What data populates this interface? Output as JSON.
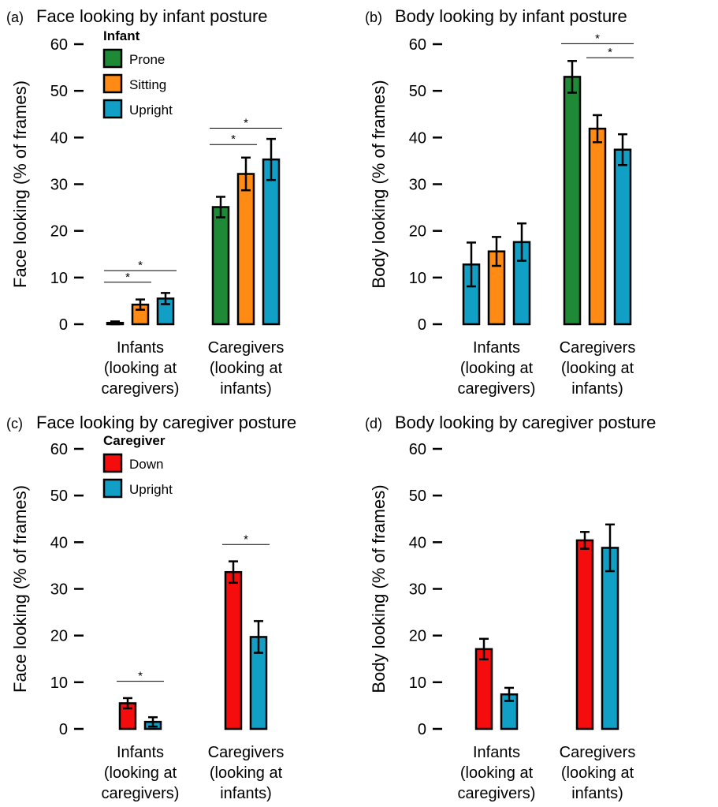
{
  "colors": {
    "Prone": "#1f8a36",
    "Sitting": "#ff8a14",
    "Upright": "#129fc5",
    "Down": "#f50d0d"
  },
  "chart_data": [
    {
      "type": "bar",
      "panel": "(a)",
      "title": "Face looking by infant posture",
      "ylabel": "Face looking (% of frames)",
      "xlabel": "",
      "ylim": [
        0,
        60
      ],
      "yticks": [
        0,
        10,
        20,
        30,
        40,
        50,
        60
      ],
      "categories": [
        [
          "Infants",
          "(looking at",
          "caregivers)"
        ],
        [
          "Caregivers",
          "(looking at",
          "infants)"
        ]
      ],
      "legend": {
        "title": "Infant",
        "position": "top-left",
        "items": [
          "Prone",
          "Sitting",
          "Upright"
        ]
      },
      "series": [
        {
          "name": "Prone",
          "values": [
            0.3,
            25.1
          ],
          "err": [
            0.3,
            2.2
          ]
        },
        {
          "name": "Sitting",
          "values": [
            4.2,
            32.2
          ],
          "err": [
            1.1,
            3.5
          ]
        },
        {
          "name": "Upright",
          "values": [
            5.5,
            35.3
          ],
          "err": [
            1.2,
            4.4
          ]
        }
      ],
      "significance": [
        {
          "category": 0,
          "from": 0,
          "to": 1,
          "y": 9.0,
          "label": "*"
        },
        {
          "category": 0,
          "from": 0,
          "to": 2,
          "y": 11.5,
          "label": "*"
        },
        {
          "category": 1,
          "from": 0,
          "to": 1,
          "y": 38.5,
          "label": "*"
        },
        {
          "category": 1,
          "from": 0,
          "to": 2,
          "y": 42.0,
          "label": "*"
        }
      ]
    },
    {
      "type": "bar",
      "panel": "(b)",
      "title": "Body looking by infant posture",
      "ylabel": "Body looking (% of frames)",
      "xlabel": "",
      "ylim": [
        0,
        60
      ],
      "yticks": [
        0,
        10,
        20,
        30,
        40,
        50,
        60
      ],
      "categories": [
        [
          "Infants",
          "(looking at",
          "caregivers)"
        ],
        [
          "Caregivers",
          "(looking at",
          "infants)"
        ]
      ],
      "series": [
        {
          "name": "Prone",
          "values": [
            12.8,
            53.0
          ],
          "err": [
            4.7,
            3.4
          ]
        },
        {
          "name": "Sitting",
          "values": [
            15.6,
            41.9
          ],
          "err": [
            3.1,
            2.9
          ]
        },
        {
          "name": "Upright",
          "values": [
            17.6,
            37.4
          ],
          "err": [
            4.0,
            3.3
          ]
        }
      ],
      "bar_colors": [
        [
          "Upright",
          "Sitting",
          "Upright"
        ],
        [
          "Prone",
          "Sitting",
          "Upright"
        ]
      ],
      "significance": [
        {
          "category": 1,
          "from": 1,
          "to": 2,
          "y": 57.1,
          "label": "*"
        },
        {
          "category": 1,
          "from": 0,
          "to": 2,
          "y": 60.1,
          "label": "*"
        }
      ]
    },
    {
      "type": "bar",
      "panel": "(c)",
      "title": "Face looking by caregiver posture",
      "ylabel": "Face looking (% of frames)",
      "xlabel": "",
      "ylim": [
        0,
        60
      ],
      "yticks": [
        0,
        10,
        20,
        30,
        40,
        50,
        60
      ],
      "categories": [
        [
          "Infants",
          "(looking at",
          "caregivers)"
        ],
        [
          "Caregivers",
          "(looking at",
          "infants)"
        ]
      ],
      "legend": {
        "title": "Caregiver",
        "position": "top-left",
        "items": [
          "Down",
          "Upright"
        ]
      },
      "series": [
        {
          "name": "Down",
          "values": [
            5.5,
            33.6
          ],
          "err": [
            1.1,
            2.3
          ]
        },
        {
          "name": "Upright",
          "values": [
            1.5,
            19.7
          ],
          "err": [
            1.0,
            3.4
          ]
        }
      ],
      "significance": [
        {
          "category": 0,
          "from": 0,
          "to": 1,
          "y": 10.2,
          "label": "*"
        },
        {
          "category": 1,
          "from": 0,
          "to": 1,
          "y": 39.5,
          "label": "*"
        }
      ]
    },
    {
      "type": "bar",
      "panel": "(d)",
      "title": "Body looking by caregiver posture",
      "ylabel": "Body looking (% of frames)",
      "xlabel": "",
      "ylim": [
        0,
        60
      ],
      "yticks": [
        0,
        10,
        20,
        30,
        40,
        50,
        60
      ],
      "categories": [
        [
          "Infants",
          "(looking at",
          "caregivers)"
        ],
        [
          "Caregivers",
          "(looking at",
          "infants)"
        ]
      ],
      "series": [
        {
          "name": "Down",
          "values": [
            17.1,
            40.4
          ],
          "err": [
            2.2,
            1.8
          ]
        },
        {
          "name": "Upright",
          "values": [
            7.4,
            38.8
          ],
          "err": [
            1.4,
            5.0
          ]
        }
      ],
      "significance": []
    }
  ]
}
